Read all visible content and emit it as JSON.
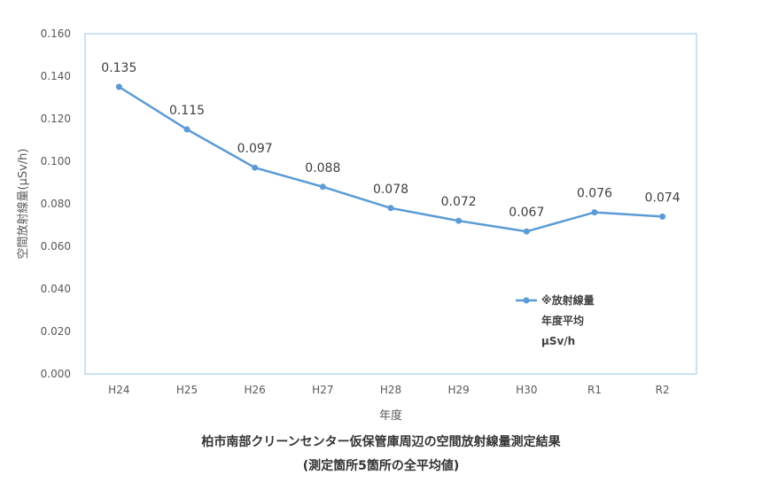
{
  "chart_data": {
    "type": "line",
    "categories": [
      "H24",
      "H25",
      "H26",
      "H27",
      "H28",
      "H29",
      "H30",
      "R1",
      "R2"
    ],
    "series": [
      {
        "name": [
          "※放射線量",
          "年度平均",
          "μSv/h"
        ],
        "values": [
          0.135,
          0.115,
          0.097,
          0.088,
          0.078,
          0.072,
          0.067,
          0.076,
          0.074
        ],
        "labels": [
          "0.135",
          "0.115",
          "0.097",
          "0.088",
          "0.078",
          "0.072",
          "0.067",
          "0.076",
          "0.074"
        ],
        "color": "#5B9BD5"
      }
    ],
    "y_ticks": [
      "0.000",
      "0.020",
      "0.040",
      "0.060",
      "0.080",
      "0.100",
      "0.120",
      "0.140",
      "0.160"
    ],
    "ylim": [
      0,
      0.16
    ],
    "xlabel": "年度",
    "ylabel": "空間放射線量(μSv/h)",
    "legend_position": "right",
    "grid": false,
    "caption": [
      "柏市南部クリーンセンター仮保管庫周辺の空間放射線量測定結果",
      "(測定箇所5箇所の全平均値)"
    ]
  }
}
